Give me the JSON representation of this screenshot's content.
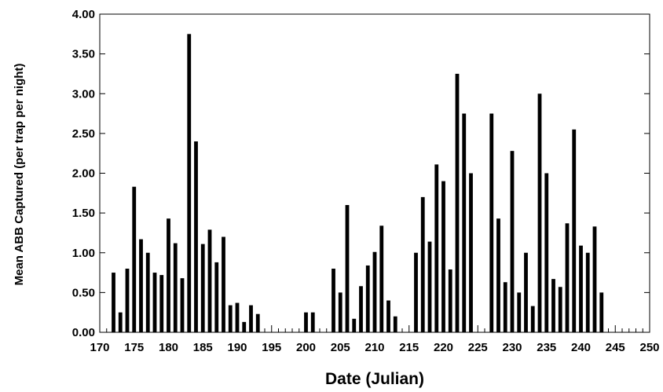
{
  "chart_data": {
    "type": "bar",
    "xlabel": "Date (Julian)",
    "ylabel": "Mean ABB Captured (per trap per night)",
    "xlim": [
      170,
      250
    ],
    "ylim": [
      0,
      4
    ],
    "x_ticks": [
      "170",
      "175",
      "180",
      "185",
      "190",
      "195",
      "200",
      "205",
      "210",
      "215",
      "220",
      "225",
      "230",
      "235",
      "240",
      "245",
      "250"
    ],
    "y_ticks": [
      "0.00",
      "0.50",
      "1.00",
      "1.50",
      "2.00",
      "2.50",
      "3.00",
      "3.50",
      "4.00"
    ],
    "x": [
      172,
      173,
      174,
      175,
      176,
      177,
      178,
      179,
      180,
      181,
      182,
      183,
      184,
      185,
      186,
      187,
      188,
      189,
      190,
      191,
      192,
      193,
      200,
      201,
      204,
      205,
      206,
      207,
      208,
      209,
      210,
      211,
      212,
      213,
      216,
      217,
      218,
      219,
      220,
      221,
      222,
      223,
      224,
      227,
      228,
      229,
      230,
      231,
      232,
      233,
      234,
      235,
      236,
      237,
      238,
      239,
      240,
      241,
      242,
      243
    ],
    "values": [
      0.75,
      0.25,
      0.8,
      1.83,
      1.17,
      1.0,
      0.75,
      0.72,
      1.43,
      1.12,
      0.68,
      3.75,
      2.4,
      1.11,
      1.29,
      0.88,
      1.2,
      0.34,
      0.37,
      0.13,
      0.34,
      0.23,
      0.25,
      0.25,
      0.8,
      0.5,
      1.6,
      0.17,
      0.58,
      0.84,
      1.01,
      1.34,
      0.4,
      0.2,
      1.0,
      1.7,
      1.14,
      2.11,
      1.9,
      0.79,
      3.25,
      2.75,
      2.0,
      2.75,
      1.43,
      0.63,
      2.28,
      0.5,
      1.0,
      0.33,
      3.0,
      2.0,
      0.67,
      0.57,
      1.37,
      2.55,
      1.09,
      1.0,
      1.33,
      0.5
    ],
    "grid": false
  }
}
